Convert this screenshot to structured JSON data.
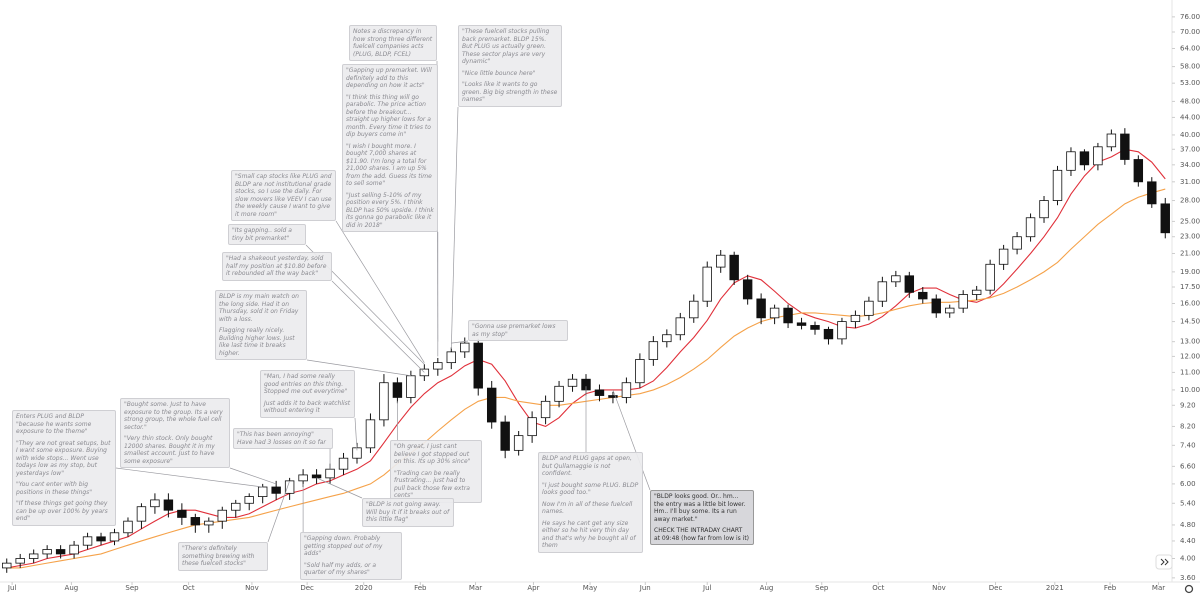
{
  "chart_data": {
    "type": "candlestick",
    "log_scale": true,
    "xlim": [
      -0.5,
      86.5
    ],
    "xticks": [
      {
        "value": 0.4,
        "label": "Jul"
      },
      {
        "value": 4.8,
        "label": "Aug"
      },
      {
        "value": 9.3,
        "label": "Sep"
      },
      {
        "value": 13.5,
        "label": "Oct"
      },
      {
        "value": 18.2,
        "label": "Nov"
      },
      {
        "value": 22.3,
        "label": "Dec"
      },
      {
        "value": 26.5,
        "label": "2020"
      },
      {
        "value": 30.7,
        "label": "Feb"
      },
      {
        "value": 34.8,
        "label": "Mar"
      },
      {
        "value": 39.1,
        "label": "Apr"
      },
      {
        "value": 43.3,
        "label": "May"
      },
      {
        "value": 47.4,
        "label": "Jun"
      },
      {
        "value": 52,
        "label": "Jul"
      },
      {
        "value": 56.4,
        "label": "Aug"
      },
      {
        "value": 60.5,
        "label": "Sep"
      },
      {
        "value": 64.7,
        "label": "Oct"
      },
      {
        "value": 69.2,
        "label": "Nov"
      },
      {
        "value": 73.4,
        "label": "Dec"
      },
      {
        "value": 77.8,
        "label": "2021"
      },
      {
        "value": 81.9,
        "label": "Feb"
      },
      {
        "value": 85.5,
        "label": "Mar"
      }
    ],
    "ylim": [
      3.52,
      83.3
    ],
    "yticks": [
      {
        "value": 3.6,
        "label": "3.60"
      },
      {
        "value": 4,
        "label": "4.00"
      },
      {
        "value": 4.4,
        "label": "4.40"
      },
      {
        "value": 4.8,
        "label": "4.80"
      },
      {
        "value": 5.4,
        "label": "5.40"
      },
      {
        "value": 6,
        "label": "6.00"
      },
      {
        "value": 6.6,
        "label": "6.60"
      },
      {
        "value": 7.4,
        "label": "7.40"
      },
      {
        "value": 8.2,
        "label": "8.20"
      },
      {
        "value": 9.2,
        "label": "9.20"
      },
      {
        "value": 10,
        "label": "10.00"
      },
      {
        "value": 11,
        "label": "11.00"
      },
      {
        "value": 12,
        "label": "12.00"
      },
      {
        "value": 13,
        "label": "13.00"
      },
      {
        "value": 14.5,
        "label": "14.50"
      },
      {
        "value": 16,
        "label": "16.00"
      },
      {
        "value": 17.5,
        "label": "17.50"
      },
      {
        "value": 19,
        "label": "19.00"
      },
      {
        "value": 21,
        "label": "21.00"
      },
      {
        "value": 23,
        "label": "23.00"
      },
      {
        "value": 25,
        "label": "25.00"
      },
      {
        "value": 28,
        "label": "28.00"
      },
      {
        "value": 31,
        "label": "31.00"
      },
      {
        "value": 34,
        "label": "34.00"
      },
      {
        "value": 37,
        "label": "37.00"
      },
      {
        "value": 40,
        "label": "40.00"
      },
      {
        "value": 44,
        "label": "44.00"
      },
      {
        "value": 48,
        "label": "48.00"
      },
      {
        "value": 53,
        "label": "53.00"
      },
      {
        "value": 58,
        "label": "58.00"
      },
      {
        "value": 64,
        "label": "64.00"
      },
      {
        "value": 70,
        "label": "70.00"
      },
      {
        "value": 76,
        "label": "76.00"
      }
    ],
    "up_color": "#ffffff",
    "down_color": "#111111",
    "wick_color": "#111111",
    "open": [
      3.8,
      3.9,
      4.0,
      4.1,
      4.2,
      4.1,
      4.3,
      4.5,
      4.4,
      4.6,
      4.9,
      5.3,
      5.5,
      5.2,
      5.0,
      4.8,
      4.9,
      5.2,
      5.4,
      5.6,
      5.9,
      5.7,
      6.1,
      6.3,
      6.2,
      6.5,
      6.9,
      7.3,
      8.5,
      10.4,
      9.6,
      10.8,
      11.2,
      11.6,
      12.3,
      12.9,
      10.1,
      8.4,
      7.2,
      7.8,
      8.6,
      9.4,
      10.2,
      10.6,
      10.0,
      9.7,
      9.6,
      10.4,
      11.8,
      13.0,
      13.5,
      14.8,
      16.2,
      19.5,
      20.8,
      18.2,
      16.4,
      14.8,
      15.6,
      14.4,
      14.2,
      13.9,
      13.2,
      14.5,
      15.0,
      16.2,
      18.0,
      18.6,
      17.0,
      16.4,
      15.2,
      15.6,
      16.8,
      17.2,
      19.8,
      21.5,
      23.0,
      25.5,
      28.0,
      33.0,
      36.5,
      34.0,
      37.5,
      40.2,
      35.0,
      31.0,
      27.5
    ],
    "high": [
      4.0,
      4.1,
      4.2,
      4.3,
      4.3,
      4.4,
      4.6,
      4.6,
      4.7,
      5.0,
      5.4,
      5.7,
      5.7,
      5.4,
      5.1,
      5.0,
      5.3,
      5.5,
      5.7,
      6.0,
      6.1,
      6.2,
      6.5,
      6.5,
      6.7,
      7.1,
      7.5,
      8.8,
      10.9,
      10.7,
      11.1,
      11.5,
      11.9,
      12.6,
      13.3,
      13.2,
      10.5,
      8.7,
      8.0,
      8.9,
      9.7,
      10.5,
      10.9,
      10.9,
      10.3,
      9.9,
      10.7,
      12.2,
      13.4,
      13.9,
      15.2,
      16.8,
      20.1,
      21.4,
      21.2,
      18.7,
      16.9,
      15.9,
      15.9,
      14.8,
      14.5,
      14.1,
      14.8,
      15.4,
      16.6,
      18.5,
      19.1,
      19.0,
      17.5,
      16.8,
      15.9,
      17.2,
      17.6,
      20.3,
      22.0,
      23.6,
      26.1,
      28.7,
      33.8,
      37.4,
      37.0,
      38.3,
      41.2,
      41.5,
      35.8,
      31.8,
      28.4
    ],
    "low": [
      3.7,
      3.8,
      3.9,
      4.0,
      4.0,
      4.0,
      4.2,
      4.3,
      4.3,
      4.5,
      4.7,
      5.1,
      5.0,
      4.8,
      4.6,
      4.6,
      4.7,
      5.0,
      5.2,
      5.4,
      5.5,
      5.5,
      5.9,
      6.0,
      6.0,
      6.3,
      6.7,
      7.1,
      8.2,
      9.3,
      9.3,
      10.5,
      10.8,
      11.2,
      11.9,
      9.7,
      8.1,
      6.9,
      7.0,
      7.5,
      8.3,
      9.1,
      9.9,
      9.7,
      9.4,
      9.3,
      9.3,
      10.1,
      11.4,
      12.6,
      13.1,
      14.4,
      15.7,
      18.9,
      17.7,
      15.9,
      14.3,
      14.3,
      14.0,
      13.9,
      13.5,
      12.8,
      12.8,
      14.0,
      14.6,
      15.7,
      17.5,
      16.5,
      16.0,
      14.8,
      14.8,
      15.2,
      16.3,
      16.8,
      19.2,
      20.9,
      22.4,
      24.8,
      27.3,
      32.0,
      33.0,
      33.0,
      36.6,
      34.0,
      30.2,
      26.9,
      22.8
    ],
    "close": [
      3.9,
      4.0,
      4.1,
      4.2,
      4.1,
      4.3,
      4.5,
      4.4,
      4.6,
      4.9,
      5.3,
      5.5,
      5.2,
      5.0,
      4.8,
      4.9,
      5.2,
      5.4,
      5.6,
      5.9,
      5.7,
      6.1,
      6.3,
      6.2,
      6.5,
      6.9,
      7.3,
      8.5,
      10.4,
      9.6,
      10.8,
      11.2,
      11.6,
      12.3,
      12.9,
      10.1,
      8.4,
      7.2,
      7.8,
      8.6,
      9.4,
      10.2,
      10.6,
      10.0,
      9.7,
      9.6,
      10.4,
      11.8,
      13.0,
      13.5,
      14.8,
      16.2,
      19.5,
      20.8,
      18.2,
      16.4,
      14.8,
      15.6,
      14.4,
      14.2,
      13.9,
      13.2,
      14.5,
      15.0,
      16.2,
      18.0,
      18.6,
      17.0,
      16.4,
      15.2,
      15.6,
      16.8,
      17.2,
      19.8,
      21.5,
      23.0,
      25.5,
      28.0,
      33.0,
      36.5,
      34.0,
      37.5,
      40.2,
      35.0,
      31.0,
      27.5,
      23.5
    ],
    "moving_averages": [
      {
        "color": "#e0303a",
        "values": [
          3.8,
          3.85,
          3.9,
          4.0,
          4.05,
          4.1,
          4.2,
          4.3,
          4.4,
          4.5,
          4.7,
          4.9,
          5.1,
          5.2,
          5.2,
          5.1,
          5.0,
          5.0,
          5.1,
          5.3,
          5.5,
          5.7,
          5.8,
          6.0,
          6.1,
          6.3,
          6.5,
          6.8,
          7.5,
          8.3,
          9.1,
          9.8,
          10.4,
          10.8,
          11.4,
          11.8,
          11.5,
          10.5,
          9.3,
          8.4,
          8.2,
          8.6,
          9.3,
          9.8,
          10.0,
          10.0,
          10.0,
          10.1,
          10.5,
          11.3,
          12.3,
          13.3,
          14.6,
          16.4,
          17.9,
          18.6,
          18.2,
          17.1,
          16.0,
          15.2,
          14.8,
          14.5,
          14.1,
          14.0,
          14.3,
          14.9,
          15.8,
          16.9,
          17.4,
          17.4,
          16.8,
          16.3,
          16.1,
          16.6,
          17.8,
          19.3,
          21.0,
          23.0,
          25.5,
          29.0,
          32.0,
          34.5,
          35.5,
          37.0,
          36.5,
          34.5,
          31.5
        ]
      },
      {
        "color": "#f5a24a",
        "values": [
          3.8,
          3.8,
          3.85,
          3.9,
          3.95,
          4.0,
          4.05,
          4.1,
          4.2,
          4.3,
          4.4,
          4.5,
          4.6,
          4.7,
          4.8,
          4.85,
          4.9,
          4.95,
          5.0,
          5.1,
          5.2,
          5.3,
          5.4,
          5.5,
          5.6,
          5.7,
          5.85,
          6.0,
          6.3,
          6.7,
          7.1,
          7.5,
          8.0,
          8.5,
          9.0,
          9.4,
          9.6,
          9.6,
          9.4,
          9.3,
          9.2,
          9.2,
          9.3,
          9.4,
          9.5,
          9.6,
          9.7,
          9.8,
          10.0,
          10.3,
          10.7,
          11.2,
          11.8,
          12.6,
          13.4,
          14.0,
          14.5,
          14.8,
          15.0,
          15.2,
          15.2,
          15.1,
          15.0,
          14.9,
          15.0,
          15.2,
          15.5,
          15.8,
          16.0,
          16.1,
          16.1,
          16.2,
          16.3,
          16.5,
          16.9,
          17.5,
          18.2,
          19.0,
          20.0,
          21.5,
          23.0,
          24.6,
          26.0,
          27.5,
          28.5,
          29.2,
          29.8
        ]
      }
    ],
    "annotations": [
      {
        "paragraphs": [
          "Notes a discrepancy in how strong three different fuelcell companies acts (PLUG, BLDP, FCEL)"
        ]
      },
      {
        "paragraphs": [
          "\"These fuelcell stocks pulling back premarket. BLDP 15%. But PLUG us actually green. These sector plays are very dynamic\"",
          "\"Nice little bounce here\"",
          "\"Looks like it wants to go green. Big big strength in these names\""
        ]
      },
      {
        "paragraphs": [
          "\"Gapping up premarket. Will definitely add to this depending on how it acts\"",
          "\"I think this thing will go parabolic. The price action before the breakout... straight up higher lows for a month. Every time it tries to dip buyers come in\"",
          "\"I wish I bought more. I bought 7,000 shares at $11.90. I'm long a total for 21,000 shares. I am up 5% from the add. Guess its time to sell some\"",
          "\"Just selling 5-10% of my position every 5%. I think BLDP has 50% upside. I think its gonna go parabolic like it did in 2018\""
        ]
      },
      {
        "paragraphs": [
          "\"Small cap stocks like PLUG and BLDP are not institutional grade stocks, so I use the daily. For slow movers like VEEV I can use the weekly cause I want to give it more room\""
        ]
      },
      {
        "paragraphs": [
          "\"Its gapping.. sold a tiny bit premarket\""
        ]
      },
      {
        "paragraphs": [
          "\"Had a shakeout yesterday, sold half my position at $10.80 before it rebounded all the way back\""
        ]
      },
      {
        "paragraphs": [
          "BLDP is my main watch on the long side. Had it on Thursday, sold it on Friday with a loss.",
          "Flagging really nicely. Building higher lows. Just like last time it breaks higher."
        ]
      },
      {
        "paragraphs": [
          "\"Gonna use premarket lows as my stop\""
        ]
      },
      {
        "paragraphs": [
          "\"Man, I had some really good entries on this thing. Stopped me out everytime\"",
          "Just adds it to back watchlist without entering it"
        ]
      },
      {
        "paragraphs": [
          "Enters PLUG and BLDP \"because he wants some exposure to the theme\"",
          "\"They are not great setups, but I want some exposure. Buying with wide stops... Went use todays low as my stop, but yesterdays low\"",
          "\"You cant enter with big positions in these things\"",
          "\"If these things get going they can be up over 100% by years end\""
        ]
      },
      {
        "paragraphs": [
          "\"Bought some. Just to have exposure to the group. Its a very strong group, the whole fuel cell sector.\"",
          "\"Very thin stock. Only bought 12000 shares. Bought it in my smallest account. Just to have some exposure\""
        ]
      },
      {
        "paragraphs": [
          "\"This has been annoying\" Have had 3 losses on it so far"
        ]
      },
      {
        "paragraphs": [
          "\"Oh great, I just cant believe I got stopped out on this. Its up 30% since\"",
          "\"Trading can be really frustrating... just had to pull back those few extra cents\""
        ]
      },
      {
        "paragraphs": [
          "BLDP and PLUG gaps at open, but Qullamaggie is not confident.",
          "\"I just bought some PLUG. BLDP looks good too.\"",
          "Now I'm in all of these fuelcell names.",
          "He says he cant get any size either so he hit very thin day and that's why he bought all of them"
        ]
      },
      {
        "paragraphs": [
          "\"BLDP is not going away. Will buy it if it breaks out of this little flag\""
        ]
      },
      {
        "paragraphs": [
          "\"BLDP looks good. Or.. hm... the entry was a little bit lower. Hm.. I'll buy some. Its a run away market.\"",
          "CHECK THE INTRADAY CHART at 09:48 (how far from low is it)"
        ]
      },
      {
        "paragraphs": [
          "\"There's definitely something brewing with these fuelcell stocks\""
        ]
      },
      {
        "paragraphs": [
          "\"Gapping down. Probably getting stopped out of my adds\"",
          "\"Sold half my adds, or a quarter of my shares\""
        ]
      }
    ]
  }
}
